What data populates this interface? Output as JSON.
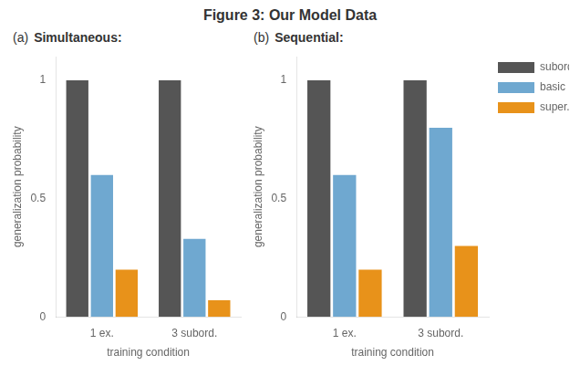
{
  "title": "Figure 3: Our Model Data",
  "chart_data": [
    {
      "type": "bar",
      "label": "(a)",
      "title": "Simultaneous:",
      "categories": [
        "1 ex.",
        "3 subord."
      ],
      "series": [
        {
          "name": "subord. match",
          "color": "#555555",
          "values": [
            1.0,
            1.0
          ]
        },
        {
          "name": "basic match",
          "color": "#6fa8d0",
          "values": [
            0.6,
            0.33
          ]
        },
        {
          "name": "super. match",
          "color": "#e8921a",
          "values": [
            0.2,
            0.07
          ]
        }
      ],
      "xlabel": "training condition",
      "ylabel": "generalization probability",
      "ylim": [
        0,
        1.1
      ],
      "yticks": [
        0,
        0.5,
        1
      ],
      "grid": false,
      "legend": false
    },
    {
      "type": "bar",
      "label": "(b)",
      "title": "Sequential:",
      "categories": [
        "1 ex.",
        "3 subord."
      ],
      "series": [
        {
          "name": "subord. match",
          "color": "#555555",
          "values": [
            1.0,
            1.0
          ]
        },
        {
          "name": "basic match",
          "color": "#6fa8d0",
          "values": [
            0.6,
            0.8
          ]
        },
        {
          "name": "super. match",
          "color": "#e8921a",
          "values": [
            0.2,
            0.3
          ]
        }
      ],
      "xlabel": "training condition",
      "ylabel": "generalization probability",
      "ylim": [
        0,
        1.1
      ],
      "yticks": [
        0,
        0.5,
        1
      ],
      "grid": false,
      "legend": "right"
    }
  ]
}
